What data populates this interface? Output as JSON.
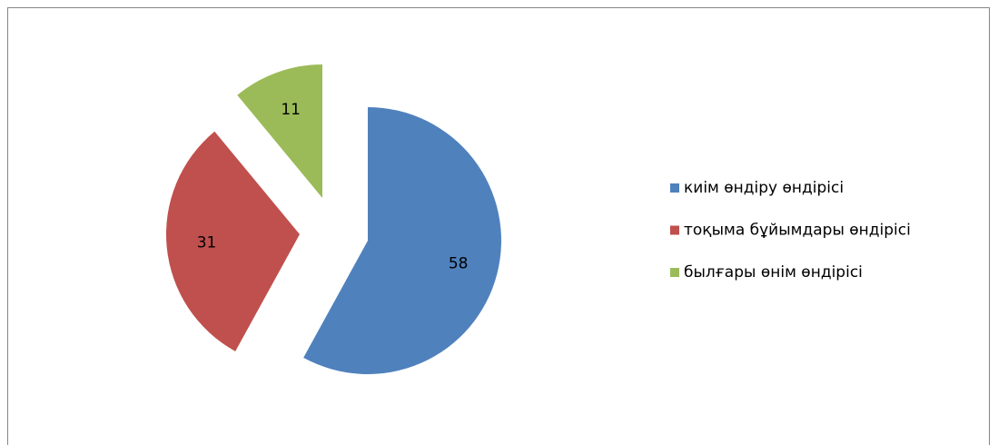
{
  "chart_data": {
    "type": "pie",
    "categories": [
      "киім өндіру өндірісі",
      "тоқыма бұйымдары өндірісі",
      "былғары өнім өндірісі"
    ],
    "values": [
      58,
      31,
      11
    ],
    "colors": [
      "#4f81bd",
      "#c0504d",
      "#9bbb59"
    ],
    "exploded": true,
    "legend": "right"
  }
}
